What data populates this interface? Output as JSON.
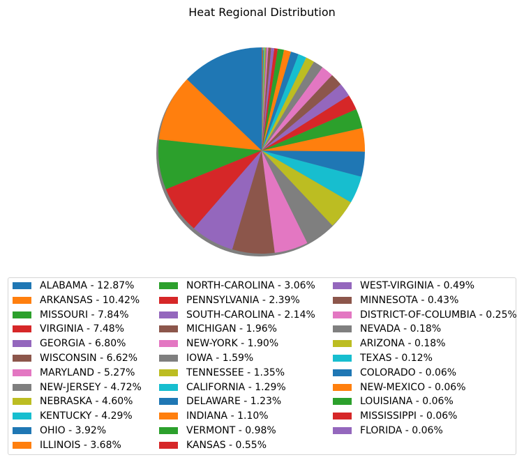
{
  "chart_data": {
    "type": "pie",
    "title": "Heat Regional Distribution",
    "shadow": true,
    "start_angle_deg": 90,
    "direction": "counterclockwise",
    "legend_placement": "bottom",
    "legend_columns": 3,
    "palette": [
      "#1f77b4",
      "#ff7f0e",
      "#2ca02c",
      "#d62728",
      "#9467bd",
      "#8c564b",
      "#e377c2",
      "#7f7f7f",
      "#bcbd22",
      "#17becf"
    ],
    "shadow_color": "#7f7f7f",
    "labels": [
      "ALABAMA",
      "ARKANSAS",
      "MISSOURI",
      "VIRGINIA",
      "GEORGIA",
      "WISCONSIN",
      "MARYLAND",
      "NEW-JERSEY",
      "NEBRASKA",
      "KENTUCKY",
      "OHIO",
      "ILLINOIS",
      "NORTH-CAROLINA",
      "PENNSYLVANIA",
      "SOUTH-CAROLINA",
      "MICHIGAN",
      "NEW-YORK",
      "IOWA",
      "TENNESSEE",
      "CALIFORNIA",
      "DELAWARE",
      "INDIANA",
      "VERMONT",
      "KANSAS",
      "WEST-VIRGINIA",
      "MINNESOTA",
      "DISTRICT-OF-COLUMBIA",
      "NEVADA",
      "ARIZONA",
      "TEXAS",
      "COLORADO",
      "NEW-MEXICO",
      "LOUISIANA",
      "MISSISSIPPI",
      "FLORIDA"
    ],
    "values": [
      12.87,
      10.42,
      7.84,
      7.48,
      6.8,
      6.62,
      5.27,
      4.72,
      4.6,
      4.29,
      3.92,
      3.68,
      3.06,
      2.39,
      2.14,
      1.96,
      1.9,
      1.59,
      1.35,
      1.29,
      1.23,
      1.1,
      0.98,
      0.55,
      0.49,
      0.43,
      0.25,
      0.18,
      0.18,
      0.12,
      0.06,
      0.06,
      0.06,
      0.06,
      0.06
    ],
    "legend_entries": [
      "ALABAMA - 12.87%",
      "ARKANSAS - 10.42%",
      "MISSOURI - 7.84%",
      "VIRGINIA - 7.48%",
      "GEORGIA - 6.80%",
      "WISCONSIN - 6.62%",
      "MARYLAND - 5.27%",
      "NEW-JERSEY - 4.72%",
      "NEBRASKA - 4.60%",
      "KENTUCKY - 4.29%",
      "OHIO - 3.92%",
      "ILLINOIS - 3.68%",
      "NORTH-CAROLINA - 3.06%",
      "PENNSYLVANIA - 2.39%",
      "SOUTH-CAROLINA - 2.14%",
      "MICHIGAN - 1.96%",
      "NEW-YORK - 1.90%",
      "IOWA - 1.59%",
      "TENNESSEE - 1.35%",
      "CALIFORNIA - 1.29%",
      "DELAWARE - 1.23%",
      "INDIANA - 1.10%",
      "VERMONT - 0.98%",
      "KANSAS - 0.55%",
      "WEST-VIRGINIA - 0.49%",
      "MINNESOTA - 0.43%",
      "DISTRICT-OF-COLUMBIA - 0.25%",
      "NEVADA - 0.18%",
      "ARIZONA - 0.18%",
      "TEXAS - 0.12%",
      "COLORADO - 0.06%",
      "NEW-MEXICO - 0.06%",
      "LOUISIANA - 0.06%",
      "MISSISSIPPI - 0.06%",
      "FLORIDA - 0.06%"
    ]
  }
}
